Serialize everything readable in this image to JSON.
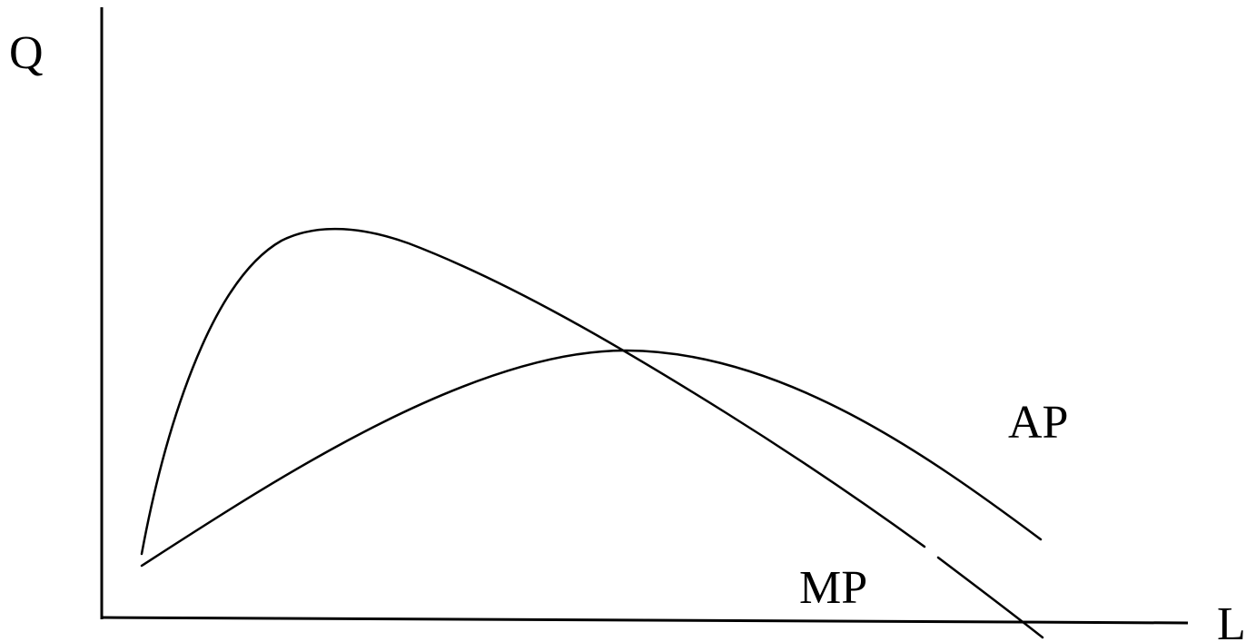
{
  "diagram": {
    "y_axis_label": "Q",
    "x_axis_label": "L",
    "curves": [
      {
        "name": "AP",
        "label": "AP"
      },
      {
        "name": "MP",
        "label": "MP"
      }
    ]
  }
}
